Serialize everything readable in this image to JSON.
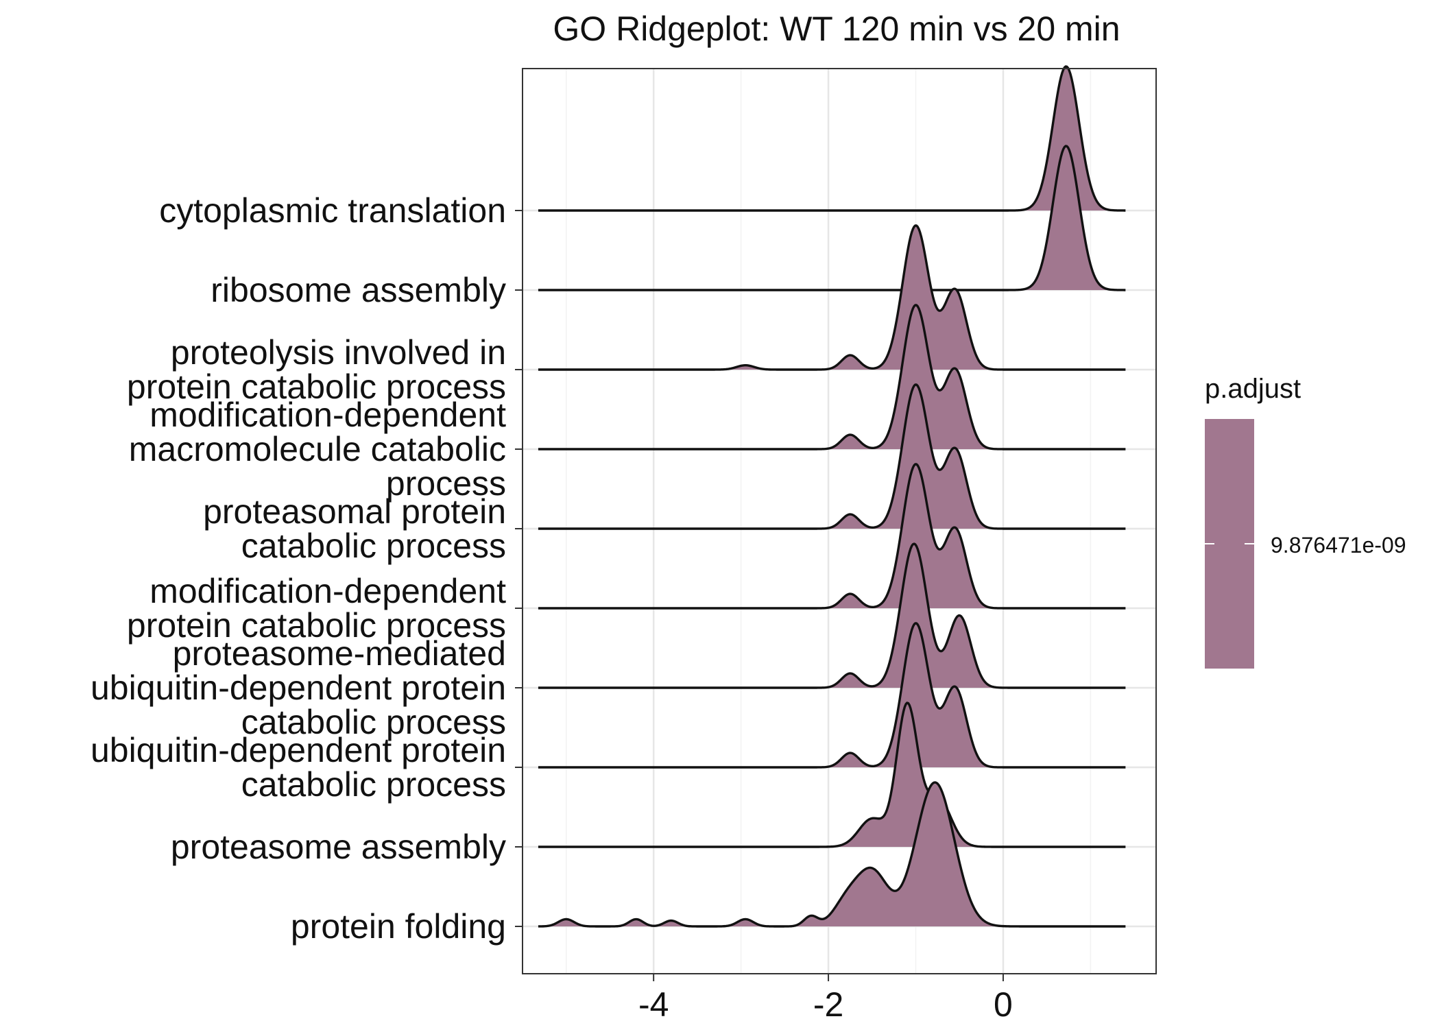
{
  "chart_data": {
    "type": "ridgeline",
    "title": "GO Ridgeplot: WT 120 min vs 20 min",
    "xlabel": "",
    "ylabel": "",
    "xlim": [
      -5.5,
      1.75
    ],
    "x_ticks": [
      -4,
      -2,
      0
    ],
    "x_tick_labels": [
      "-4",
      "-2",
      "0"
    ],
    "x_minor_gridlines": [
      -5,
      -3,
      -1,
      1
    ],
    "grid": true,
    "fill_color": "#a1778f",
    "line_color": "#111111",
    "legend": {
      "title": "p.adjust",
      "position": "right",
      "entries": [
        {
          "label": "9.876471e-09",
          "color": "#a1778f"
        }
      ]
    },
    "series": [
      {
        "name": "protein folding",
        "label_lines": [
          "protein folding"
        ],
        "x_range": [
          -5.32,
          1.4
        ],
        "components": [
          {
            "mu": -0.78,
            "sd": 0.22,
            "w": 1.0
          },
          {
            "mu": -1.5,
            "sd": 0.18,
            "w": 0.38
          },
          {
            "mu": -1.8,
            "sd": 0.15,
            "w": 0.15
          },
          {
            "mu": -2.2,
            "sd": 0.08,
            "w": 0.07
          },
          {
            "mu": -2.95,
            "sd": 0.09,
            "w": 0.05
          },
          {
            "mu": -3.8,
            "sd": 0.08,
            "w": 0.04
          },
          {
            "mu": -4.2,
            "sd": 0.08,
            "w": 0.05
          },
          {
            "mu": -5.0,
            "sd": 0.09,
            "w": 0.05
          }
        ]
      },
      {
        "name": "proteasome assembly",
        "label_lines": [
          "proteasome assembly"
        ],
        "x_range": [
          -5.32,
          1.4
        ],
        "components": [
          {
            "mu": -1.1,
            "sd": 0.12,
            "w": 1.0
          },
          {
            "mu": -0.75,
            "sd": 0.15,
            "w": 0.35
          },
          {
            "mu": -1.5,
            "sd": 0.15,
            "w": 0.2
          }
        ]
      },
      {
        "name": "ubiquitin-dependent protein catabolic process",
        "label_lines": [
          "ubiquitin-dependent protein",
          "catabolic process"
        ],
        "x_range": [
          -5.32,
          1.4
        ],
        "components": [
          {
            "mu": -1.0,
            "sd": 0.15,
            "w": 1.0
          },
          {
            "mu": -0.55,
            "sd": 0.13,
            "w": 0.55
          },
          {
            "mu": -1.75,
            "sd": 0.1,
            "w": 0.1
          }
        ]
      },
      {
        "name": "proteasome-mediated ubiquitin-dependent protein catabolic process",
        "label_lines": [
          "proteasome-mediated",
          "ubiquitin-dependent protein",
          "catabolic process"
        ],
        "x_range": [
          -5.32,
          1.4
        ],
        "components": [
          {
            "mu": -1.02,
            "sd": 0.15,
            "w": 1.0
          },
          {
            "mu": -0.5,
            "sd": 0.13,
            "w": 0.5
          },
          {
            "mu": -1.75,
            "sd": 0.1,
            "w": 0.1
          }
        ]
      },
      {
        "name": "modification-dependent protein catabolic process",
        "label_lines": [
          "modification-dependent",
          "protein catabolic process"
        ],
        "x_range": [
          -5.32,
          1.4
        ],
        "components": [
          {
            "mu": -1.0,
            "sd": 0.15,
            "w": 1.0
          },
          {
            "mu": -0.55,
            "sd": 0.13,
            "w": 0.55
          },
          {
            "mu": -1.75,
            "sd": 0.1,
            "w": 0.1
          }
        ]
      },
      {
        "name": "proteasomal protein catabolic process",
        "label_lines": [
          "proteasomal protein",
          "catabolic process"
        ],
        "x_range": [
          -5.32,
          1.4
        ],
        "components": [
          {
            "mu": -1.0,
            "sd": 0.15,
            "w": 1.0
          },
          {
            "mu": -0.55,
            "sd": 0.13,
            "w": 0.55
          },
          {
            "mu": -1.75,
            "sd": 0.1,
            "w": 0.1
          }
        ]
      },
      {
        "name": "modification-dependent macromolecule catabolic process",
        "label_lines": [
          "modification-dependent",
          "macromolecule catabolic",
          "process"
        ],
        "x_range": [
          -5.32,
          1.4
        ],
        "components": [
          {
            "mu": -1.0,
            "sd": 0.15,
            "w": 1.0
          },
          {
            "mu": -0.55,
            "sd": 0.13,
            "w": 0.55
          },
          {
            "mu": -1.75,
            "sd": 0.1,
            "w": 0.1
          }
        ]
      },
      {
        "name": "proteolysis involved in protein catabolic process",
        "label_lines": [
          "proteolysis involved in",
          "protein catabolic process"
        ],
        "x_range": [
          -5.32,
          1.4
        ],
        "components": [
          {
            "mu": -1.0,
            "sd": 0.15,
            "w": 1.0
          },
          {
            "mu": -0.55,
            "sd": 0.13,
            "w": 0.55
          },
          {
            "mu": -1.75,
            "sd": 0.1,
            "w": 0.1
          },
          {
            "mu": -2.95,
            "sd": 0.1,
            "w": 0.03
          }
        ]
      },
      {
        "name": "ribosome assembly",
        "label_lines": [
          "ribosome assembly"
        ],
        "x_range": [
          -5.32,
          1.4
        ],
        "components": [
          {
            "mu": 0.72,
            "sd": 0.15,
            "w": 1.0
          }
        ]
      },
      {
        "name": "cytoplasmic translation",
        "label_lines": [
          "cytoplasmic translation"
        ],
        "x_range": [
          -5.32,
          1.4
        ],
        "components": [
          {
            "mu": 0.72,
            "sd": 0.15,
            "w": 1.0
          }
        ]
      }
    ]
  }
}
